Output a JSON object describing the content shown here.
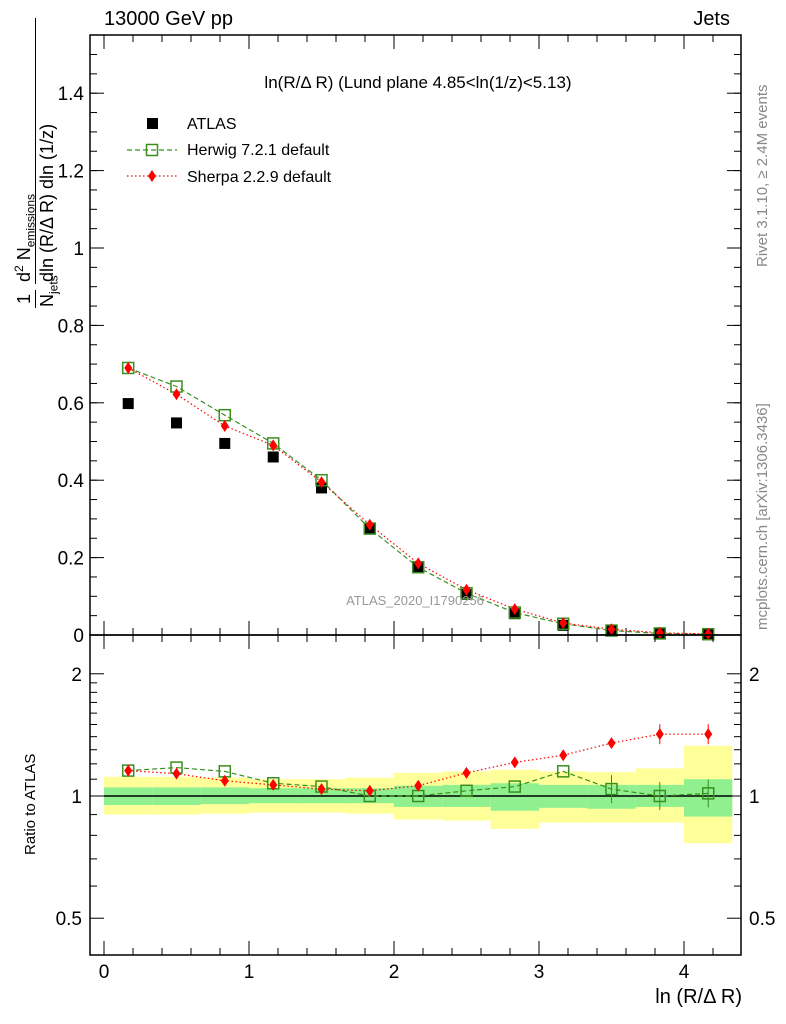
{
  "header": {
    "left": "13000 GeV pp",
    "right": "Jets"
  },
  "side_labels": {
    "rivet": "Rivet 3.1.10, ≥ 2.4M events",
    "mcplots": "mcplots.cern.ch [arXiv:1306.3436]"
  },
  "watermark": "ATLAS_2020_I1790256",
  "main_title": "ln(R/Δ R) (Lund plane 4.85<ln(1/z)<5.13)",
  "ratio_ylabel": "Ratio to ATLAS",
  "xlabel": "ln (R/Δ R)",
  "colors": {
    "atlas": "#000000",
    "herwig": "#3a8f1e",
    "sherpa": "#ff0000",
    "band_inner": "#90f090",
    "band_outer": "#ffff99"
  },
  "chart_data": [
    {
      "type": "scatter",
      "panel": "main",
      "xlim": [
        -0.1,
        4.4
      ],
      "ylim": [
        0,
        1.5
      ],
      "ylabel": "1/N_jets d²N_emissions / dln(R/Δ R) dln(1/z)",
      "yticks": [
        "0",
        "0.2",
        "0.4",
        "0.6",
        "0.8",
        "1",
        "1.2",
        "1.4"
      ],
      "legend_position": "top-left",
      "x": [
        0.167,
        0.5,
        0.833,
        1.167,
        1.5,
        1.833,
        2.167,
        2.5,
        2.833,
        3.167,
        3.5,
        3.833,
        4.167
      ],
      "series": [
        {
          "name": "ATLAS",
          "style": "square-filled",
          "values": [
            0.598,
            0.548,
            0.495,
            0.46,
            0.38,
            0.275,
            0.175,
            0.105,
            0.055,
            0.025,
            0.011,
            0.004,
            0.002
          ]
        },
        {
          "name": "Herwig 7.2.1 default",
          "style": "square-open-dashed",
          "values": [
            0.69,
            0.642,
            0.568,
            0.495,
            0.4,
            0.275,
            0.175,
            0.108,
            0.058,
            0.029,
            0.0115,
            0.004,
            0.002
          ]
        },
        {
          "name": "Sherpa 2.2.9 default",
          "style": "diamond-dotted",
          "values": [
            0.69,
            0.622,
            0.54,
            0.49,
            0.395,
            0.285,
            0.185,
            0.117,
            0.067,
            0.031,
            0.015,
            0.0057,
            0.0028
          ]
        }
      ]
    },
    {
      "type": "scatter",
      "panel": "ratio",
      "xlim": [
        -0.1,
        4.4
      ],
      "ylim": [
        0.35,
        2.3
      ],
      "xticks": [
        "0",
        "1",
        "2",
        "3",
        "4"
      ],
      "yticks": [
        "0.5",
        "1",
        "2"
      ],
      "ylabel": "Ratio to ATLAS",
      "x": [
        0.167,
        0.5,
        0.833,
        1.167,
        1.5,
        1.833,
        2.167,
        2.5,
        2.833,
        3.167,
        3.5,
        3.833,
        4.167
      ],
      "bins": [
        [
          0,
          0.333
        ],
        [
          0.333,
          0.667
        ],
        [
          0.667,
          1
        ],
        [
          1,
          1.333
        ],
        [
          1.333,
          1.667
        ],
        [
          1.667,
          2
        ],
        [
          2,
          2.333
        ],
        [
          2.333,
          2.667
        ],
        [
          2.667,
          3
        ],
        [
          3,
          3.333
        ],
        [
          3.333,
          3.667
        ],
        [
          3.667,
          4
        ],
        [
          4,
          4.333
        ]
      ],
      "band_inner": [
        [
          0.95,
          1.05
        ],
        [
          0.95,
          1.05
        ],
        [
          0.955,
          1.05
        ],
        [
          0.96,
          1.045
        ],
        [
          0.96,
          1.045
        ],
        [
          0.96,
          1.045
        ],
        [
          0.94,
          1.06
        ],
        [
          0.94,
          1.065
        ],
        [
          0.92,
          1.075
        ],
        [
          0.935,
          1.065
        ],
        [
          0.93,
          1.065
        ],
        [
          0.94,
          1.065
        ],
        [
          0.89,
          1.1
        ]
      ],
      "band_outer": [
        [
          0.9,
          1.115
        ],
        [
          0.9,
          1.115
        ],
        [
          0.905,
          1.11
        ],
        [
          0.91,
          1.1
        ],
        [
          0.91,
          1.1
        ],
        [
          0.905,
          1.11
        ],
        [
          0.875,
          1.14
        ],
        [
          0.87,
          1.15
        ],
        [
          0.83,
          1.16
        ],
        [
          0.86,
          1.15
        ],
        [
          0.86,
          1.145
        ],
        [
          0.86,
          1.17
        ],
        [
          0.765,
          1.33
        ]
      ],
      "series": [
        {
          "name": "Herwig 7.2.1 default",
          "values": [
            1.155,
            1.175,
            1.15,
            1.075,
            1.055,
            1.0,
            1.0,
            1.03,
            1.055,
            1.15,
            1.04,
            1.0,
            1.015
          ]
        },
        {
          "name": "Sherpa 2.2.9 default",
          "values": [
            1.155,
            1.135,
            1.09,
            1.065,
            1.04,
            1.03,
            1.06,
            1.14,
            1.21,
            1.26,
            1.35,
            1.42,
            1.42
          ]
        }
      ]
    }
  ]
}
